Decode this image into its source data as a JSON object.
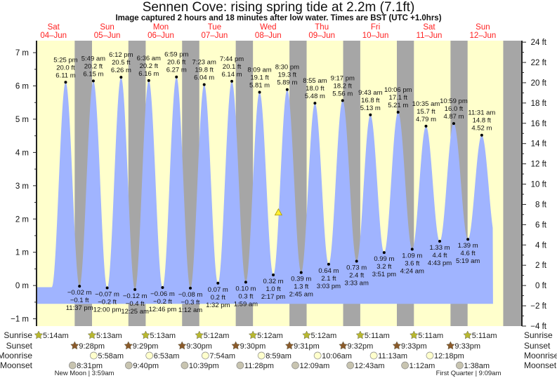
{
  "title": "Sennen Cove: rising  spring tide at 2.2m (7.1ft)",
  "subtitle": "Image captured 2 hours and 18 minutes after low water. Times are BST (UTC +1.0hrs)",
  "colors": {
    "day": "#ffffcc",
    "night": "#a6a6a6",
    "water": "#a0b4ff",
    "day_label": "#ff2020",
    "sunrise": "#b8b830",
    "sunset": "#8a5a2a",
    "moonrise": "#ffffcc",
    "moonset": "#c8c4b0",
    "marker": "#ffee33"
  },
  "chart_data": {
    "type": "area",
    "title": "Sennen Cove: rising  spring tide at 2.2m (7.1ft)",
    "ylim_m": [
      -1.22,
      7.36
    ],
    "left_axis_ticks": [
      "7 m",
      "6 m",
      "5 m",
      "4 m",
      "3 m",
      "2 m",
      "1 m",
      "0 m",
      "−1 m"
    ],
    "right_axis_ticks": [
      "24 ft",
      "22 ft",
      "20 ft",
      "18 ft",
      "16 ft",
      "14 ft",
      "12 ft",
      "10 ft",
      "8 ft",
      "6 ft",
      "4 ft",
      "2 ft",
      "0 ft",
      "−2 ft",
      "−4 ft"
    ],
    "days": [
      {
        "dow": "Sat",
        "date": "04–Jun"
      },
      {
        "dow": "Sun",
        "date": "05–Jun"
      },
      {
        "dow": "Mon",
        "date": "06–Jun"
      },
      {
        "dow": "Tue",
        "date": "07–Jun"
      },
      {
        "dow": "Wed",
        "date": "08–Jun"
      },
      {
        "dow": "Thu",
        "date": "09–Jun"
      },
      {
        "dow": "Fri",
        "date": "10–Jun"
      },
      {
        "dow": "Sat",
        "date": "11–Jun"
      },
      {
        "dow": "Sun",
        "date": "12–Jun"
      }
    ],
    "extremes": [
      {
        "type": "high",
        "day": 0,
        "time": "5:25 pm",
        "ft": "20.0 ft",
        "m": 6.11
      },
      {
        "type": "low",
        "day": 0,
        "time": "11:37 pm",
        "ft": "−0.1 ft",
        "m": -0.02
      },
      {
        "type": "high",
        "day": 1,
        "time": "5:49 am",
        "ft": "20.2 ft",
        "m": 6.15
      },
      {
        "type": "low",
        "day": 1,
        "time": "12:00 pm",
        "ft": "−0.2 ft",
        "m": -0.07
      },
      {
        "type": "high",
        "day": 1,
        "time": "6:12 pm",
        "ft": "20.5 ft",
        "m": 6.26
      },
      {
        "type": "low",
        "day": 2,
        "time": "12:25 am",
        "ft": "−0.4 ft",
        "m": -0.12
      },
      {
        "type": "high",
        "day": 2,
        "time": "6:36 am",
        "ft": "20.2 ft",
        "m": 6.16
      },
      {
        "type": "low",
        "day": 2,
        "time": "12:46 pm",
        "ft": "−0.2 ft",
        "m": -0.06
      },
      {
        "type": "high",
        "day": 2,
        "time": "6:59 pm",
        "ft": "20.6 ft",
        "m": 6.27
      },
      {
        "type": "low",
        "day": 3,
        "time": "1:12 am",
        "ft": "−0.3 ft",
        "m": -0.08
      },
      {
        "type": "high",
        "day": 3,
        "time": "7:23 am",
        "ft": "19.8 ft",
        "m": 6.04
      },
      {
        "type": "low",
        "day": 3,
        "time": "1:32 pm",
        "ft": "0.2 ft",
        "m": 0.07
      },
      {
        "type": "high",
        "day": 3,
        "time": "7:44 pm",
        "ft": "20.1 ft",
        "m": 6.14
      },
      {
        "type": "low",
        "day": 4,
        "time": "1:59 am",
        "ft": "0.3 ft",
        "m": 0.1
      },
      {
        "type": "high",
        "day": 4,
        "time": "8:09 am",
        "ft": "19.1 ft",
        "m": 5.81
      },
      {
        "type": "low",
        "day": 4,
        "time": "2:17 pm",
        "ft": "1.0 ft",
        "m": 0.32
      },
      {
        "type": "high",
        "day": 4,
        "time": "8:30 pm",
        "ft": "19.3 ft",
        "m": 5.89
      },
      {
        "type": "low",
        "day": 5,
        "time": "2:45 am",
        "ft": "1.3 ft",
        "m": 0.39
      },
      {
        "type": "high",
        "day": 5,
        "time": "8:55 am",
        "ft": "18.0 ft",
        "m": 5.48
      },
      {
        "type": "low",
        "day": 5,
        "time": "3:03 pm",
        "ft": "2.1 ft",
        "m": 0.64
      },
      {
        "type": "high",
        "day": 5,
        "time": "9:17 pm",
        "ft": "18.2 ft",
        "m": 5.56
      },
      {
        "type": "low",
        "day": 6,
        "time": "3:33 am",
        "ft": "2.4 ft",
        "m": 0.73
      },
      {
        "type": "high",
        "day": 6,
        "time": "9:43 am",
        "ft": "16.8 ft",
        "m": 5.13
      },
      {
        "type": "low",
        "day": 6,
        "time": "3:51 pm",
        "ft": "3.2 ft",
        "m": 0.99
      },
      {
        "type": "high",
        "day": 6,
        "time": "10:06 pm",
        "ft": "17.1 ft",
        "m": 5.21
      },
      {
        "type": "low",
        "day": 7,
        "time": "4:24 am",
        "ft": "3.6 ft",
        "m": 1.09
      },
      {
        "type": "high",
        "day": 7,
        "time": "10:35 am",
        "ft": "15.7 ft",
        "m": 4.79
      },
      {
        "type": "low",
        "day": 7,
        "time": "4:43 pm",
        "ft": "4.4 ft",
        "m": 1.33
      },
      {
        "type": "high",
        "day": 7,
        "time": "10:59 pm",
        "ft": "16.0 ft",
        "m": 4.87
      },
      {
        "type": "low",
        "day": 8,
        "time": "5:19 am",
        "ft": "4.6 ft",
        "m": 1.39
      },
      {
        "type": "high",
        "day": 8,
        "time": "11:31 am",
        "ft": "14.8 ft",
        "m": 4.52
      }
    ],
    "current": {
      "day": 4,
      "time": "4:35 pm",
      "m": 2.2
    }
  },
  "almanac": {
    "row_labels": {
      "sunrise": "Sunrise",
      "sunset": "Sunset",
      "moonrise": "Moonrise",
      "moonset": "Moonset"
    },
    "sunrise": [
      {
        "day": 0,
        "time": "5:14am"
      },
      {
        "day": 1,
        "time": "5:13am"
      },
      {
        "day": 2,
        "time": "5:13am"
      },
      {
        "day": 3,
        "time": "5:12am"
      },
      {
        "day": 4,
        "time": "5:12am"
      },
      {
        "day": 5,
        "time": "5:12am"
      },
      {
        "day": 6,
        "time": "5:11am"
      },
      {
        "day": 7,
        "time": "5:11am"
      },
      {
        "day": 8,
        "time": "5:11am"
      }
    ],
    "sunset": [
      {
        "day": 0,
        "time": "9:28pm"
      },
      {
        "day": 1,
        "time": "9:29pm"
      },
      {
        "day": 2,
        "time": "9:30pm"
      },
      {
        "day": 3,
        "time": "9:30pm"
      },
      {
        "day": 4,
        "time": "9:31pm"
      },
      {
        "day": 5,
        "time": "9:32pm"
      },
      {
        "day": 6,
        "time": "9:33pm"
      },
      {
        "day": 7,
        "time": "9:33pm"
      }
    ],
    "moonrise": [
      {
        "day": 1,
        "time": "5:58am"
      },
      {
        "day": 2,
        "time": "6:53am"
      },
      {
        "day": 3,
        "time": "7:54am"
      },
      {
        "day": 4,
        "time": "8:59am"
      },
      {
        "day": 5,
        "time": "10:06am"
      },
      {
        "day": 6,
        "time": "11:13am"
      },
      {
        "day": 7,
        "time": "12:18pm"
      }
    ],
    "moonset": [
      {
        "day": 0,
        "time": "8:31pm"
      },
      {
        "day": 1,
        "time": "9:40pm"
      },
      {
        "day": 2,
        "time": "10:39pm"
      },
      {
        "day": 3,
        "time": "11:28pm"
      },
      {
        "day": 5,
        "time": "12:09am"
      },
      {
        "day": 6,
        "time": "12:43am"
      },
      {
        "day": 7,
        "time": "1:12am"
      },
      {
        "day": 8,
        "time": "1:38am"
      }
    ],
    "phases": [
      {
        "label": "New Moon | 3:59am"
      },
      {
        "label": "First Quarter | 9:09am"
      }
    ]
  }
}
